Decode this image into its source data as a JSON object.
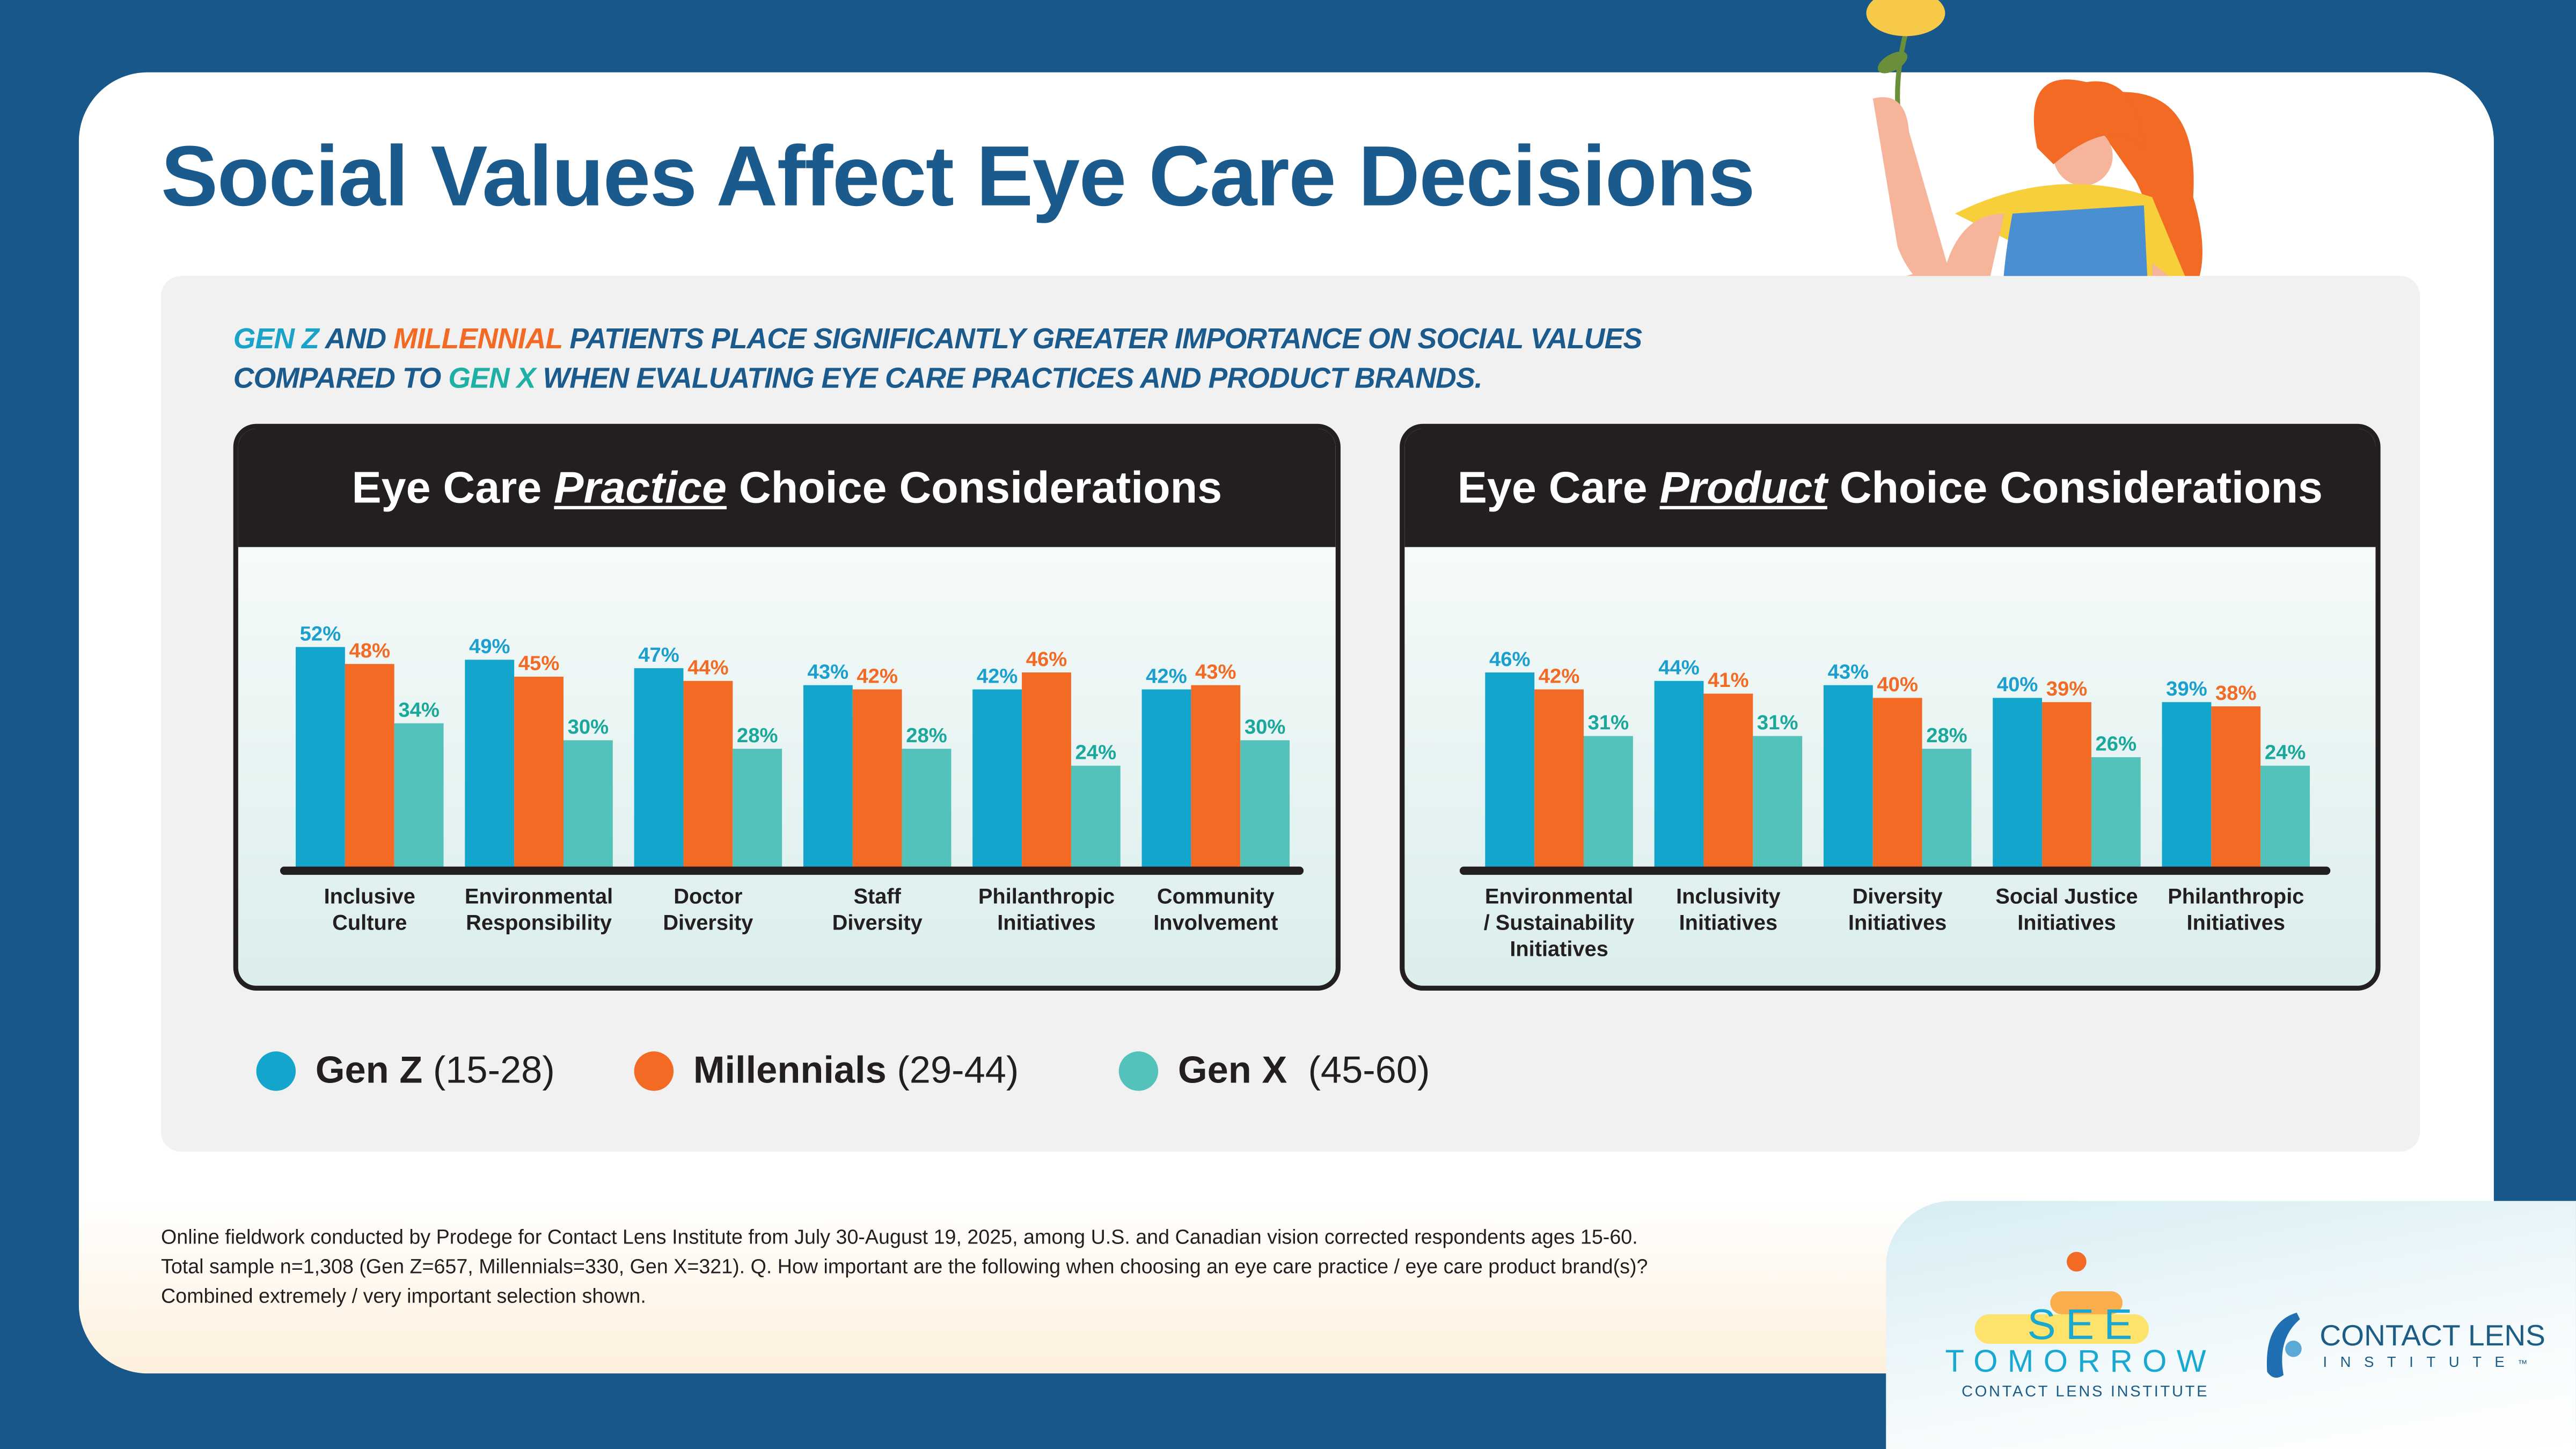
{
  "title": "Social Values Affect Eye Care Decisions",
  "subtitle": {
    "line1": [
      {
        "text": "GEN Z",
        "c": "z"
      },
      {
        "text": " AND ",
        "c": ""
      },
      {
        "text": "MILLENNIAL",
        "c": "m"
      },
      {
        "text": " PATIENTS PLACE SIGNIFICANTLY GREATER IMPORTANCE ON SOCIAL VALUES",
        "c": ""
      }
    ],
    "line2": [
      {
        "text": "COMPARED TO ",
        "c": ""
      },
      {
        "text": "GEN X",
        "c": "x"
      },
      {
        "text": " WHEN EVALUATING EYE CARE PRACTICES AND PRODUCT BRANDS.",
        "c": ""
      }
    ]
  },
  "colors": {
    "gen_z": "#13a5cb",
    "millennials": "#f26a23",
    "gen_x": "#52c2bb",
    "gen_x_label": "#1aa89c",
    "gen_z_label": "#1a9fcf",
    "title": "#1b5a8c",
    "background": "#175789"
  },
  "chart_data": [
    {
      "type": "bar",
      "title_pre": "Eye Care ",
      "title_em": "Practice",
      "title_post": " Choice Considerations",
      "categories": [
        "Inclusive\nCulture",
        "Environmental\nResponsibility",
        "Doctor\nDiversity",
        "Staff\nDiversity",
        "Philanthropic\nInitiatives",
        "Community\nInvolvement"
      ],
      "series": [
        {
          "name": "Gen Z (15-28)",
          "values": [
            52,
            49,
            47,
            43,
            42,
            42
          ]
        },
        {
          "name": "Millennials (29-44)",
          "values": [
            48,
            45,
            44,
            42,
            46,
            43
          ]
        },
        {
          "name": "Gen X (45-60)",
          "values": [
            34,
            30,
            28,
            28,
            24,
            30
          ]
        }
      ],
      "unit": "%",
      "ylim": [
        0,
        55
      ],
      "grid": false
    },
    {
      "type": "bar",
      "title_pre": "Eye Care ",
      "title_em": "Product",
      "title_post": " Choice Considerations",
      "categories": [
        "Environmental\n/ Sustainability\nInitiatives",
        "Inclusivity\nInitiatives",
        "Diversity\nInitiatives",
        "Social Justice\nInitiatives",
        "Philanthropic\nInitiatives"
      ],
      "series": [
        {
          "name": "Gen Z (15-28)",
          "values": [
            46,
            44,
            43,
            40,
            39
          ]
        },
        {
          "name": "Millennials (29-44)",
          "values": [
            42,
            41,
            40,
            39,
            38
          ]
        },
        {
          "name": "Gen X (45-60)",
          "values": [
            31,
            31,
            28,
            26,
            24
          ]
        }
      ],
      "unit": "%",
      "ylim": [
        0,
        55
      ],
      "grid": false
    }
  ],
  "legend": [
    {
      "bold": "Gen Z",
      "rest": " (15-28)"
    },
    {
      "bold": "Millennials",
      "rest": " (29-44)"
    },
    {
      "bold": "Gen X",
      "rest": "  (45-60)"
    }
  ],
  "footnote": [
    "Online fieldwork conducted by Prodege for Contact Lens Institute from July 30-August 19, 2025, among U.S. and Canadian vision corrected respondents ages 15-60.",
    "Total sample n=1,308 (Gen Z=657, Millennials=330, Gen X=321). Q. How important are the following when choosing an eye care practice / eye care product brand(s)?",
    "Combined extremely / very important selection shown."
  ],
  "logos": {
    "see_tomorrow": {
      "line1": "SEE",
      "line2": "TOMORROW",
      "line3": "CONTACT LENS INSTITUTE"
    },
    "cli": {
      "line1": "CONTACT LENS",
      "line2": "INSTITUTE",
      "tm": "™"
    }
  }
}
